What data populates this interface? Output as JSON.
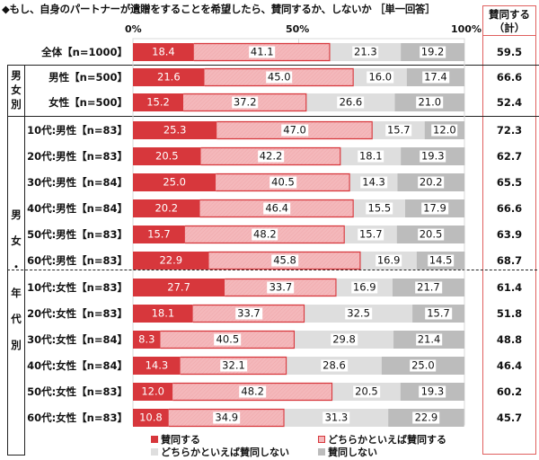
{
  "chart_data": {
    "type": "bar",
    "orientation": "horizontal-stacked-100",
    "title": "◆もし、自身のパートナーが遺贈をすることを希望したら、賛同するか、しないか ［単一回答］",
    "xlim": [
      0,
      100
    ],
    "x_ticks": [
      "0%",
      "50%",
      "100%"
    ],
    "total_column_header": [
      "賛同する",
      "（計）"
    ],
    "series": [
      {
        "name": "賛同する",
        "color": "#d7373c"
      },
      {
        "name": "どちらかといえば賛同する",
        "color": "#f4b8bb"
      },
      {
        "name": "どちらかといえば賛同しない",
        "color": "#dedede"
      },
      {
        "name": "賛同しない",
        "color": "#bcbcbc"
      }
    ],
    "groups": [
      {
        "label": "",
        "rows": [
          0
        ]
      },
      {
        "label": "男女別",
        "rows": [
          1,
          2
        ]
      },
      {
        "label": "男女・年代別",
        "rows": [
          3,
          4,
          5,
          6,
          7,
          8,
          9,
          10,
          11,
          12,
          13,
          14
        ]
      }
    ],
    "categories": [
      "全体【n=1000】",
      "男性【n=500】",
      "女性【n=500】",
      "10代:男性【n=83】",
      "20代:男性【n=83】",
      "30代:男性【n=84】",
      "40代:男性【n=84】",
      "50代:男性【n=83】",
      "60代:男性【n=83】",
      "10代:女性【n=83】",
      "20代:女性【n=83】",
      "30代:女性【n=84】",
      "40代:女性【n=84】",
      "50代:女性【n=83】",
      "60代:女性【n=83】"
    ],
    "values": [
      [
        18.4,
        41.1,
        21.3,
        19.2
      ],
      [
        21.6,
        45.0,
        16.0,
        17.4
      ],
      [
        15.2,
        37.2,
        26.6,
        21.0
      ],
      [
        25.3,
        47.0,
        15.7,
        12.0
      ],
      [
        20.5,
        42.2,
        18.1,
        19.3
      ],
      [
        25.0,
        40.5,
        14.3,
        20.2
      ],
      [
        20.2,
        46.4,
        15.5,
        17.9
      ],
      [
        15.7,
        48.2,
        15.7,
        20.5
      ],
      [
        22.9,
        45.8,
        16.9,
        14.5
      ],
      [
        27.7,
        33.7,
        16.9,
        21.7
      ],
      [
        18.1,
        33.7,
        32.5,
        15.7
      ],
      [
        8.3,
        40.5,
        29.8,
        21.4
      ],
      [
        14.3,
        32.1,
        28.6,
        25.0
      ],
      [
        12.0,
        48.2,
        20.5,
        19.3
      ],
      [
        10.8,
        34.9,
        31.3,
        22.9
      ]
    ],
    "totals": [
      "59.5",
      "66.6",
      "52.4",
      "72.3",
      "62.7",
      "65.5",
      "66.6",
      "63.9",
      "68.7",
      "61.4",
      "51.8",
      "48.8",
      "46.4",
      "60.2",
      "45.7"
    ],
    "legend": [
      "賛同する",
      "どちらかといえば賛同する",
      "どちらかといえば賛同しない",
      "賛同しない"
    ],
    "legend_position": "bottom"
  },
  "group_labels": {
    "gender": "男女別",
    "gender_age": [
      "男",
      "女",
      "・",
      "年",
      "代",
      "別"
    ]
  }
}
